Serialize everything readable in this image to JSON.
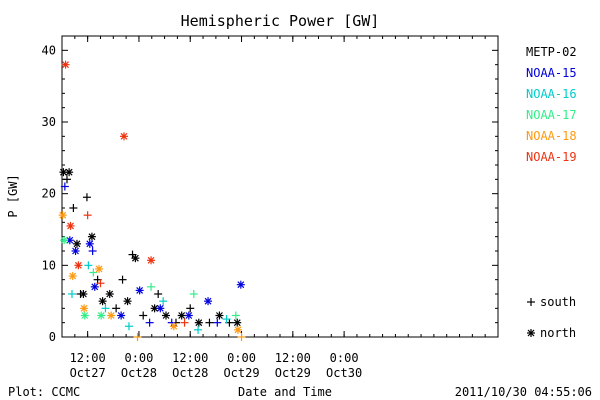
{
  "chart_data": {
    "type": "scatter",
    "title": "Hemispheric Power [GW]",
    "xlabel": "Date and Time",
    "ylabel": "P [GW]",
    "ylim": [
      0,
      42
    ],
    "xlim": [
      "2011-10-26T06:00",
      "2011-10-30T12:00"
    ],
    "y_ticks": [
      0,
      10,
      20,
      30,
      40
    ],
    "x_ticks": [
      {
        "time": "2011-10-26T12:00",
        "hour_label": "12:00",
        "date_label": "Oct27"
      },
      {
        "time": "2011-10-27T00:00",
        "hour_label": "0:00",
        "date_label": "Oct28"
      },
      {
        "time": "2011-10-27T12:00",
        "hour_label": "12:00",
        "date_label": "Oct28"
      },
      {
        "time": "2011-10-28T00:00",
        "hour_label": "0:00",
        "date_label": "Oct29"
      },
      {
        "time": "2011-10-28T12:00",
        "hour_label": "12:00",
        "date_label": "Oct29"
      },
      {
        "time": "2011-10-29T00:00",
        "hour_label": "0:00",
        "date_label": "Oct30"
      }
    ],
    "grid": false,
    "legend_position": "right",
    "marker_legend": [
      {
        "marker": "plus",
        "label": "south"
      },
      {
        "marker": "star",
        "label": "north"
      }
    ],
    "series": [
      {
        "name": "METP-02",
        "color": "#000000",
        "points": [
          {
            "x": "2011-10-26T06:20",
            "y": 23,
            "m": "star"
          },
          {
            "x": "2011-10-26T07:10",
            "y": 22,
            "m": "plus"
          },
          {
            "x": "2011-10-26T07:40",
            "y": 23,
            "m": "star"
          },
          {
            "x": "2011-10-26T08:40",
            "y": 18,
            "m": "plus"
          },
          {
            "x": "2011-10-26T09:30",
            "y": 13,
            "m": "star"
          },
          {
            "x": "2011-10-26T10:20",
            "y": 6,
            "m": "plus"
          },
          {
            "x": "2011-10-26T11:00",
            "y": 6,
            "m": "star"
          },
          {
            "x": "2011-10-26T11:50",
            "y": 19.5,
            "m": "plus"
          },
          {
            "x": "2011-10-26T13:00",
            "y": 14,
            "m": "star"
          },
          {
            "x": "2011-10-26T14:20",
            "y": 8,
            "m": "plus"
          },
          {
            "x": "2011-10-26T15:30",
            "y": 5,
            "m": "star"
          },
          {
            "x": "2011-10-26T17:10",
            "y": 6,
            "m": "star"
          },
          {
            "x": "2011-10-26T18:40",
            "y": 4,
            "m": "plus"
          },
          {
            "x": "2011-10-26T20:10",
            "y": 8,
            "m": "plus"
          },
          {
            "x": "2011-10-26T21:20",
            "y": 5,
            "m": "star"
          },
          {
            "x": "2011-10-26T22:30",
            "y": 11.5,
            "m": "plus"
          },
          {
            "x": "2011-10-26T23:10",
            "y": 11,
            "m": "star"
          },
          {
            "x": "2011-10-27T01:00",
            "y": 3,
            "m": "plus"
          },
          {
            "x": "2011-10-27T03:40",
            "y": 4,
            "m": "star"
          },
          {
            "x": "2011-10-27T04:30",
            "y": 6,
            "m": "plus"
          },
          {
            "x": "2011-10-27T06:20",
            "y": 3,
            "m": "star"
          },
          {
            "x": "2011-10-27T08:40",
            "y": 2,
            "m": "plus"
          },
          {
            "x": "2011-10-27T10:00",
            "y": 3,
            "m": "star"
          },
          {
            "x": "2011-10-27T12:00",
            "y": 4,
            "m": "plus"
          },
          {
            "x": "2011-10-27T14:00",
            "y": 2,
            "m": "star"
          },
          {
            "x": "2011-10-27T16:30",
            "y": 2,
            "m": "plus"
          },
          {
            "x": "2011-10-27T18:50",
            "y": 3,
            "m": "star"
          },
          {
            "x": "2011-10-27T21:10",
            "y": 2,
            "m": "plus"
          },
          {
            "x": "2011-10-27T23:00",
            "y": 2,
            "m": "star"
          }
        ]
      },
      {
        "name": "NOAA-15",
        "color": "#0000dd",
        "points": [
          {
            "x": "2011-10-26T06:40",
            "y": 21,
            "m": "plus"
          },
          {
            "x": "2011-10-26T07:50",
            "y": 13.5,
            "m": "star"
          },
          {
            "x": "2011-10-26T09:10",
            "y": 12,
            "m": "star"
          },
          {
            "x": "2011-10-26T12:30",
            "y": 13,
            "m": "star"
          },
          {
            "x": "2011-10-26T13:10",
            "y": 12,
            "m": "plus"
          },
          {
            "x": "2011-10-26T13:40",
            "y": 7,
            "m": "star"
          },
          {
            "x": "2011-10-26T19:50",
            "y": 3,
            "m": "star"
          },
          {
            "x": "2011-10-27T00:10",
            "y": 6.5,
            "m": "star"
          },
          {
            "x": "2011-10-27T02:30",
            "y": 2,
            "m": "plus"
          },
          {
            "x": "2011-10-27T05:00",
            "y": 4,
            "m": "star"
          },
          {
            "x": "2011-10-27T07:40",
            "y": 2,
            "m": "plus"
          },
          {
            "x": "2011-10-27T11:40",
            "y": 3,
            "m": "star"
          },
          {
            "x": "2011-10-27T16:10",
            "y": 5,
            "m": "star"
          },
          {
            "x": "2011-10-27T18:20",
            "y": 2,
            "m": "plus"
          },
          {
            "x": "2011-10-27T23:50",
            "y": 7.3,
            "m": "star"
          }
        ]
      },
      {
        "name": "NOAA-16",
        "color": "#00cccc",
        "points": [
          {
            "x": "2011-10-26T08:20",
            "y": 6,
            "m": "plus"
          },
          {
            "x": "2011-10-26T12:10",
            "y": 10,
            "m": "plus"
          },
          {
            "x": "2011-10-26T16:10",
            "y": 4,
            "m": "plus"
          },
          {
            "x": "2011-10-26T21:40",
            "y": 1.5,
            "m": "plus"
          },
          {
            "x": "2011-10-27T05:40",
            "y": 5,
            "m": "plus"
          },
          {
            "x": "2011-10-27T13:50",
            "y": 1,
            "m": "plus"
          },
          {
            "x": "2011-10-27T20:30",
            "y": 2.5,
            "m": "plus"
          }
        ]
      },
      {
        "name": "NOAA-17",
        "color": "#33ee88",
        "points": [
          {
            "x": "2011-10-26T06:30",
            "y": 13.5,
            "m": "star"
          },
          {
            "x": "2011-10-26T11:20",
            "y": 3,
            "m": "star"
          },
          {
            "x": "2011-10-26T13:20",
            "y": 9,
            "m": "plus"
          },
          {
            "x": "2011-10-26T15:10",
            "y": 3,
            "m": "star"
          },
          {
            "x": "2011-10-27T02:50",
            "y": 7,
            "m": "plus"
          },
          {
            "x": "2011-10-27T12:50",
            "y": 6,
            "m": "plus"
          },
          {
            "x": "2011-10-27T22:40",
            "y": 3,
            "m": "plus"
          }
        ]
      },
      {
        "name": "NOAA-18",
        "color": "#ff9911",
        "points": [
          {
            "x": "2011-10-26T06:10",
            "y": 17,
            "m": "star"
          },
          {
            "x": "2011-10-26T08:30",
            "y": 8.5,
            "m": "star"
          },
          {
            "x": "2011-10-26T11:10",
            "y": 4,
            "m": "star"
          },
          {
            "x": "2011-10-26T14:40",
            "y": 9.5,
            "m": "star"
          },
          {
            "x": "2011-10-26T17:30",
            "y": 3,
            "m": "star"
          },
          {
            "x": "2011-10-26T23:40",
            "y": 0,
            "m": "plus"
          },
          {
            "x": "2011-10-27T08:10",
            "y": 1.5,
            "m": "star"
          },
          {
            "x": "2011-10-27T23:10",
            "y": 1,
            "m": "star"
          },
          {
            "x": "2011-10-28T00:00",
            "y": 0,
            "m": "plus"
          }
        ]
      },
      {
        "name": "NOAA-19",
        "color": "#ee3311",
        "points": [
          {
            "x": "2011-10-26T06:50",
            "y": 38,
            "m": "star"
          },
          {
            "x": "2011-10-26T08:00",
            "y": 15.5,
            "m": "star"
          },
          {
            "x": "2011-10-26T09:50",
            "y": 10,
            "m": "star"
          },
          {
            "x": "2011-10-26T12:00",
            "y": 17,
            "m": "plus"
          },
          {
            "x": "2011-10-26T15:00",
            "y": 7.5,
            "m": "plus"
          },
          {
            "x": "2011-10-26T20:30",
            "y": 28,
            "m": "star"
          },
          {
            "x": "2011-10-27T02:50",
            "y": 10.7,
            "m": "star"
          },
          {
            "x": "2011-10-27T10:40",
            "y": 2,
            "m": "plus"
          }
        ]
      }
    ]
  },
  "footer": {
    "plot_credit": "Plot: CCMC",
    "timestamp": "2011/10/30 04:55:06"
  }
}
